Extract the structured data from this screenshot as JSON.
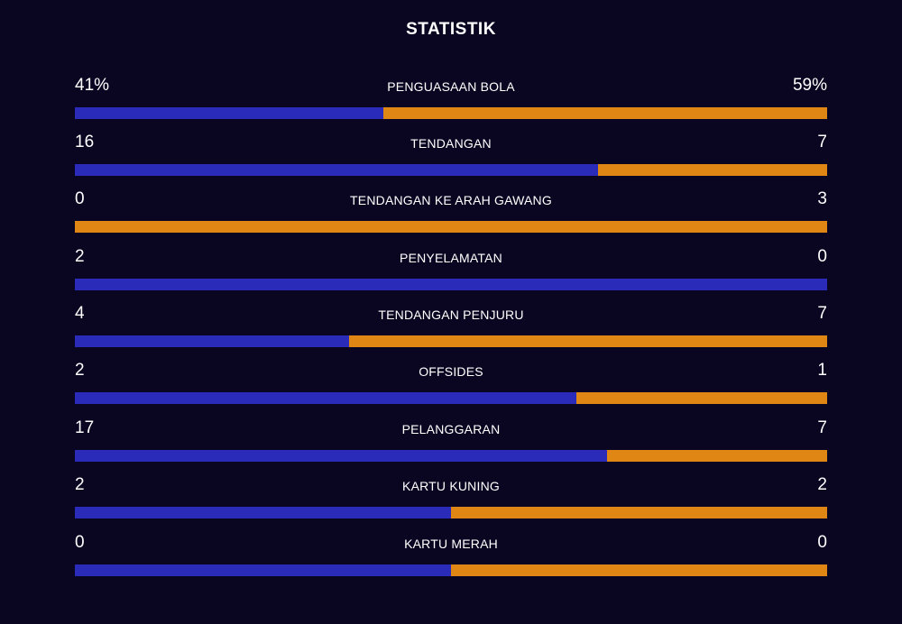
{
  "title": "STATISTIK",
  "colors": {
    "background": "#0a0622",
    "home": "#2a2bb8",
    "away": "#e08614",
    "text": "#ffffff"
  },
  "stats": [
    {
      "label": "PENGUASAAN BOLA",
      "left": "41%",
      "right": "59%",
      "left_share": 0.41
    },
    {
      "label": "TENDANGAN",
      "left": "16",
      "right": "7",
      "left_share": 0.696
    },
    {
      "label": "TENDANGAN KE ARAH GAWANG",
      "left": "0",
      "right": "3",
      "left_share": 0.0
    },
    {
      "label": "PENYELAMATAN",
      "left": "2",
      "right": "0",
      "left_share": 1.0
    },
    {
      "label": "TENDANGAN PENJURU",
      "left": "4",
      "right": "7",
      "left_share": 0.364
    },
    {
      "label": "OFFSIDES",
      "left": "2",
      "right": "1",
      "left_share": 0.667
    },
    {
      "label": "PELANGGARAN",
      "left": "17",
      "right": "7",
      "left_share": 0.708
    },
    {
      "label": "KARTU KUNING",
      "left": "2",
      "right": "2",
      "left_share": 0.5
    },
    {
      "label": "KARTU MERAH",
      "left": "0",
      "right": "0",
      "left_share": 0.5
    }
  ]
}
